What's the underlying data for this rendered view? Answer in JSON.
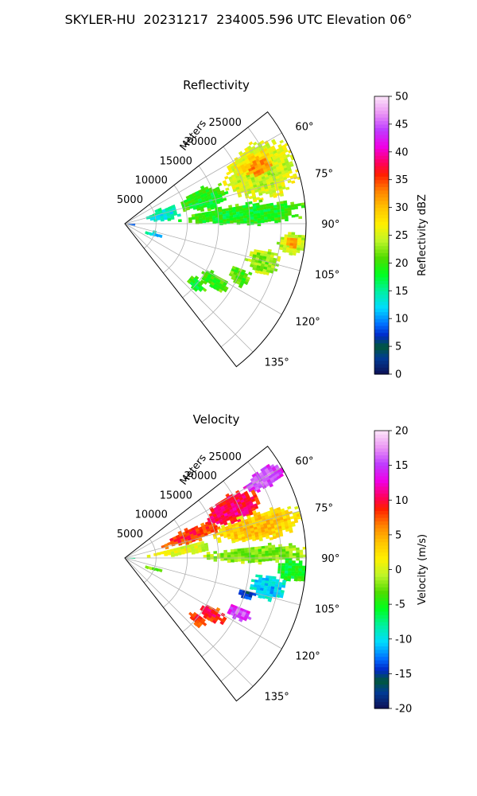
{
  "suptitle": "SKYLER-HU  20231217  234005.596 UTC Elevation 06°",
  "chart_data": [
    {
      "type": "polar-sector",
      "title": "Reflectivity",
      "radial_axis_label": "Meters",
      "theta_range_deg": [
        52,
        142
      ],
      "r_max_m": 29000,
      "r_ticks": [
        5000,
        10000,
        15000,
        20000,
        25000
      ],
      "theta_ticks": [
        60,
        75,
        90,
        105,
        120,
        135
      ],
      "theta_tick_labels": [
        "60°",
        "75°",
        "90°",
        "105°",
        "120°",
        "135°"
      ],
      "grid": true,
      "colorbar": {
        "label": "Reflectivity dBZ",
        "range": [
          0,
          50
        ],
        "ticks": [
          0,
          5,
          10,
          15,
          20,
          25,
          30,
          35,
          40,
          45,
          50
        ]
      },
      "cells": [
        {
          "az": [
            57,
            80
          ],
          "r": [
            17000,
            29000
          ],
          "value": 24
        },
        {
          "az": [
            60,
            68
          ],
          "r": [
            19000,
            26000
          ],
          "value": 29
        },
        {
          "az": [
            63,
            70
          ],
          "r": [
            21000,
            25000
          ],
          "value": 33
        },
        {
          "az": [
            64,
            80
          ],
          "r": [
            9000,
            17000
          ],
          "value": 18
        },
        {
          "az": [
            66,
            84
          ],
          "r": [
            3000,
            9000
          ],
          "value": 13
        },
        {
          "az": [
            80,
            90
          ],
          "r": [
            8000,
            29000
          ],
          "value": 18
        },
        {
          "az": [
            92,
            100
          ],
          "r": [
            24500,
            28800
          ],
          "value": 26
        },
        {
          "az": [
            94,
            98
          ],
          "r": [
            25500,
            27500
          ],
          "value": 33
        },
        {
          "az": [
            100,
            110
          ],
          "r": [
            20000,
            25500
          ],
          "value": 22
        },
        {
          "az": [
            110,
            118
          ],
          "r": [
            18000,
            22000
          ],
          "value": 20
        },
        {
          "az": [
            118,
            126
          ],
          "r": [
            14000,
            19000
          ],
          "value": 19
        },
        {
          "az": [
            126,
            133
          ],
          "r": [
            13000,
            16500
          ],
          "value": 18
        },
        {
          "az": [
            103,
            110
          ],
          "r": [
            3000,
            6000
          ],
          "value": 11
        },
        {
          "az": [
            82,
            96
          ],
          "r": [
            0,
            1500
          ],
          "value": 6
        }
      ]
    },
    {
      "type": "polar-sector",
      "title": "Velocity",
      "radial_axis_label": "Meters",
      "theta_range_deg": [
        52,
        142
      ],
      "r_max_m": 29000,
      "r_ticks": [
        5000,
        10000,
        15000,
        20000,
        25000
      ],
      "theta_ticks": [
        60,
        75,
        90,
        105,
        120,
        135
      ],
      "theta_tick_labels": [
        "60°",
        "75°",
        "90°",
        "105°",
        "120°",
        "135°"
      ],
      "grid": true,
      "colorbar": {
        "label": "Velocity (m/s)",
        "range": [
          -20,
          20
        ],
        "ticks": [
          -20,
          -15,
          -10,
          -5,
          0,
          5,
          10,
          15,
          20
        ]
      },
      "cells": [
        {
          "az": [
            56,
            64
          ],
          "r": [
            22000,
            29000
          ],
          "value": 16
        },
        {
          "az": [
            58,
            72
          ],
          "r": [
            14000,
            23000
          ],
          "value": 11
        },
        {
          "az": [
            64,
            76
          ],
          "r": [
            5000,
            16000
          ],
          "value": 9
        },
        {
          "az": [
            70,
            82
          ],
          "r": [
            14000,
            29000
          ],
          "value": 4
        },
        {
          "az": [
            76,
            86
          ],
          "r": [
            3000,
            14000
          ],
          "value": 1
        },
        {
          "az": [
            84,
            92
          ],
          "r": [
            12000,
            29000
          ],
          "value": -3
        },
        {
          "az": [
            90,
            98
          ],
          "r": [
            24000,
            28800
          ],
          "value": -6
        },
        {
          "az": [
            96,
            106
          ],
          "r": [
            20000,
            26000
          ],
          "value": -11
        },
        {
          "az": [
            104,
            108
          ],
          "r": [
            18500,
            21500
          ],
          "value": -15
        },
        {
          "az": [
            112,
            118
          ],
          "r": [
            18000,
            22000
          ],
          "value": 16
        },
        {
          "az": [
            118,
            126
          ],
          "r": [
            14000,
            18500
          ],
          "value": 10
        },
        {
          "az": [
            126,
            133
          ],
          "r": [
            13000,
            16500
          ],
          "value": 9
        },
        {
          "az": [
            103,
            112
          ],
          "r": [
            3000,
            6000
          ],
          "value": -3
        },
        {
          "az": [
            82,
            96
          ],
          "r": [
            0,
            1500
          ],
          "value": -9
        }
      ]
    }
  ]
}
